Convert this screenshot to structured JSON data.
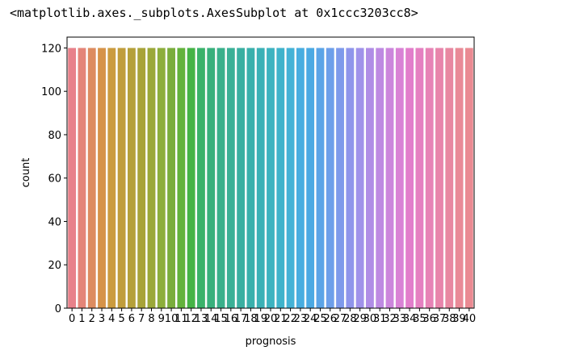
{
  "output": {
    "repr_text": "<matplotlib.axes._subplots.AxesSubplot at 0x1ccc3203cc8>"
  },
  "chart_data": {
    "type": "bar",
    "title": "",
    "xlabel": "prognosis",
    "ylabel": "count",
    "ylim": [
      0,
      125
    ],
    "yticks": [
      0,
      20,
      40,
      60,
      80,
      100,
      120
    ],
    "categories": [
      "0",
      "1",
      "2",
      "3",
      "4",
      "5",
      "6",
      "7",
      "8",
      "9",
      "10",
      "11",
      "12",
      "13",
      "14",
      "15",
      "16",
      "17",
      "18",
      "19",
      "20",
      "21",
      "22",
      "23",
      "24",
      "25",
      "26",
      "27",
      "28",
      "29",
      "30",
      "31",
      "32",
      "33",
      "34",
      "35",
      "36",
      "37",
      "38",
      "39",
      "40"
    ],
    "values": [
      120,
      120,
      120,
      120,
      120,
      120,
      120,
      120,
      120,
      120,
      120,
      120,
      120,
      120,
      120,
      120,
      120,
      120,
      120,
      120,
      120,
      120,
      120,
      120,
      120,
      120,
      120,
      120,
      120,
      120,
      120,
      120,
      120,
      120,
      120,
      120,
      120,
      120,
      120,
      120,
      120
    ],
    "colors": [
      "#e8818a",
      "#e48578",
      "#dd8c60",
      "#d69349",
      "#cb9b3f",
      "#c09d3c",
      "#b5a03a",
      "#a8a339",
      "#9ba839",
      "#8dae3c",
      "#7aad3c",
      "#63b23c",
      "#45b346",
      "#3ab26a",
      "#38b07c",
      "#39b08b",
      "#3ab096",
      "#3aafa1",
      "#3ab0ac",
      "#3bb1b6",
      "#3db3c0",
      "#3fb3cb",
      "#44b2d6",
      "#48ade0",
      "#4ba9e3",
      "#5ba4e7",
      "#6d9fea",
      "#7e9aeb",
      "#8f95eb",
      "#a092ea",
      "#b08de6",
      "#be8ae2",
      "#cc86dc",
      "#d982d5",
      "#e27ecb",
      "#e580c1",
      "#e783b6",
      "#e885ab",
      "#e888a1",
      "#e98a97",
      "#ea8a92"
    ],
    "grid": false,
    "legend": "none"
  }
}
